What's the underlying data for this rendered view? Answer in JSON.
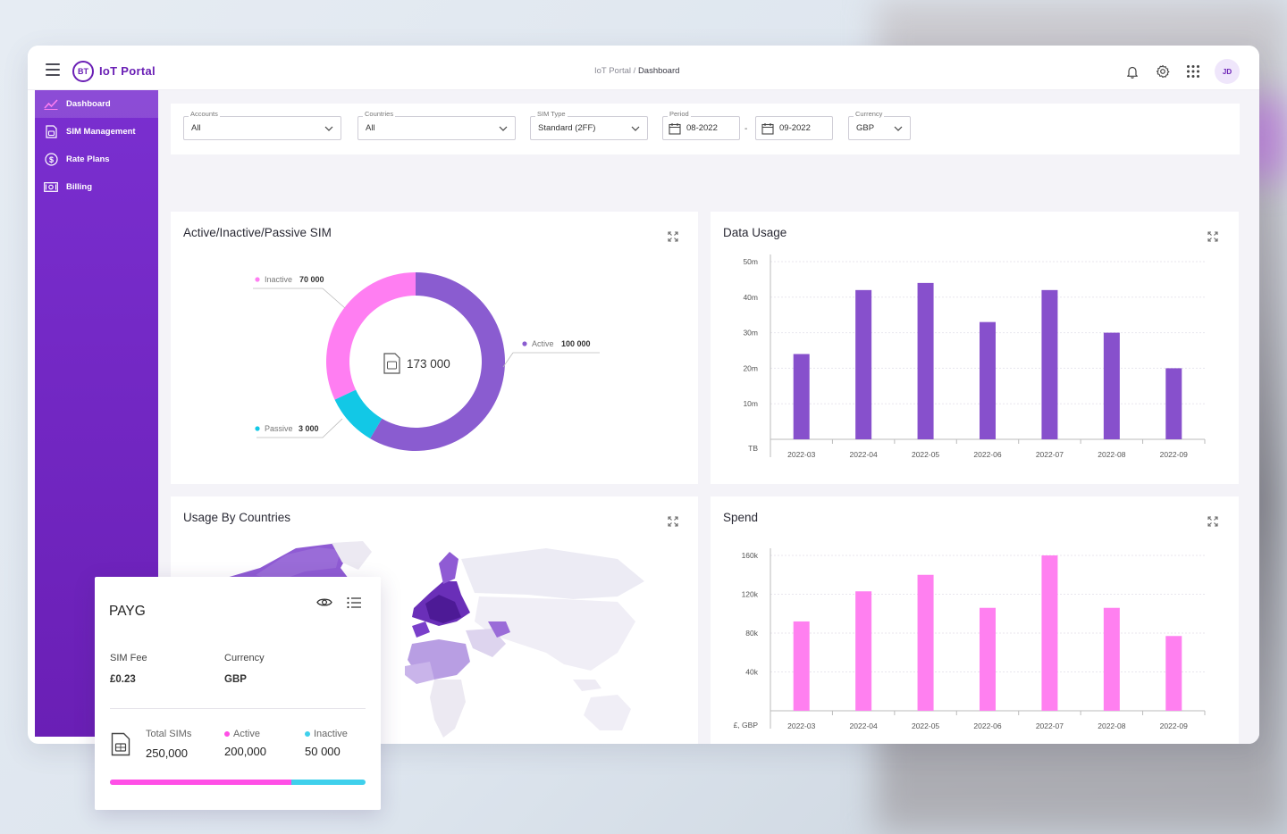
{
  "app": {
    "logo": "BT",
    "title": "IoT Portal",
    "user_initials": "JD"
  },
  "breadcrumb": {
    "root": "IoT Portal",
    "sep": "/",
    "current": "Dashboard"
  },
  "sidebar": {
    "items": [
      {
        "label": "Dashboard",
        "icon": "trend-icon",
        "active": true
      },
      {
        "label": "SIM Management",
        "icon": "sim-icon",
        "active": false
      },
      {
        "label": "Rate Plans",
        "icon": "dollar-icon",
        "active": false
      },
      {
        "label": "Billing",
        "icon": "billing-icon",
        "active": false
      }
    ]
  },
  "filters": {
    "accounts": {
      "label": "Accounts",
      "value": "All"
    },
    "countries": {
      "label": "Countries",
      "value": "All"
    },
    "sim_type": {
      "label": "SIM Type",
      "value": "Standard (2FF)"
    },
    "period": {
      "label": "Period",
      "from": "08-2022",
      "to": "09-2022",
      "sep": "-"
    },
    "currency": {
      "label": "Currency",
      "value": "GBP"
    }
  },
  "cards": {
    "sim_status": {
      "title": "Active/Inactive/Passive SIM",
      "total": "173 000"
    },
    "data_usage": {
      "title": "Data Usage"
    },
    "usage_by_countries": {
      "title": "Usage By Countries"
    },
    "spend": {
      "title": "Spend"
    }
  },
  "chart_data": [
    {
      "type": "pie",
      "title": "Active/Inactive/Passive SIM",
      "center_label": "173 000",
      "slices": [
        {
          "name": "Active",
          "value": 100000,
          "display": "100 000",
          "color": "#8a5cd0"
        },
        {
          "name": "Passive",
          "value": 3000,
          "display": "3 000",
          "color": "#12c8e6"
        },
        {
          "name": "Inactive",
          "value": 70000,
          "display": "70 000",
          "color": "#ff7ef2"
        }
      ],
      "visual_fractions": {
        "Active": 0.585,
        "Passive": 0.095,
        "Inactive": 0.32
      }
    },
    {
      "type": "bar",
      "title": "Data Usage",
      "categories": [
        "2022-03",
        "2022-04",
        "2022-05",
        "2022-06",
        "2022-07",
        "2022-08",
        "2022-09"
      ],
      "values": [
        24,
        42,
        44,
        33,
        42,
        30,
        20
      ],
      "yticks": [
        "50m",
        "40m",
        "30m",
        "20m",
        "10m"
      ],
      "ytick_values": [
        50,
        40,
        30,
        20,
        10
      ],
      "ylim": [
        0,
        50
      ],
      "unit_label": "TB",
      "color": "#8750cc"
    },
    {
      "type": "bar",
      "title": "Spend",
      "categories": [
        "2022-03",
        "2022-04",
        "2022-05",
        "2022-06",
        "2022-07",
        "2022-08",
        "2022-09"
      ],
      "values": [
        92,
        123,
        140,
        106,
        160,
        106,
        77
      ],
      "yticks": [
        "160k",
        "120k",
        "80k",
        "40k"
      ],
      "ytick_values": [
        160,
        120,
        80,
        40
      ],
      "ylim": [
        0,
        160
      ],
      "unit_label": "£, GBP",
      "color": "#ff80f0"
    }
  ],
  "payg": {
    "title": "PAYG",
    "sim_fee_label": "SIM Fee",
    "sim_fee_value": "£0.23",
    "currency_label": "Currency",
    "currency_value": "GBP",
    "total_label": "Total SIMs",
    "total_value": "250,000",
    "active_label": "Active",
    "active_value": "200,000",
    "inactive_label": "Inactive",
    "inactive_value": "50 000",
    "active_fraction": 0.71,
    "active_color": "#ff4fe6",
    "inactive_color": "#3fd0ec"
  },
  "colors": {
    "brand": "#6a1fb5",
    "accent_pink": "#ff7ef2",
    "accent_cyan": "#12c8e6"
  }
}
